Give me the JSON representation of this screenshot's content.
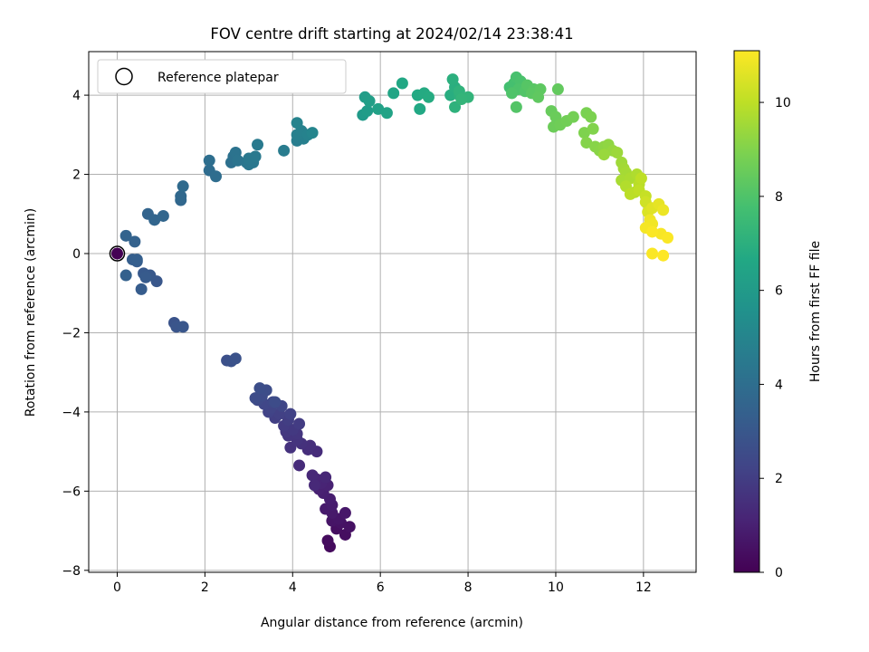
{
  "chart_data": {
    "type": "scatter",
    "title": "FOV centre drift starting at 2024/02/14 23:38:41",
    "xlabel": "Angular distance from reference (arcmin)",
    "ylabel": "Rotation from reference (arcmin)",
    "xlim": [
      -0.65,
      13.2
    ],
    "ylim": [
      -8.05,
      5.1
    ],
    "xticks": [
      0,
      2,
      4,
      6,
      8,
      10,
      12
    ],
    "yticks": [
      -8,
      -6,
      -4,
      -2,
      0,
      2,
      4
    ],
    "grid": true,
    "legend": {
      "position": "top-left",
      "entries": [
        "Reference platepar"
      ]
    },
    "colorbar": {
      "label": "Hours from first FF file",
      "colormap": "viridis",
      "range": [
        0,
        11.1
      ],
      "ticks": [
        0,
        2,
        4,
        6,
        8,
        10
      ]
    },
    "reference_point": {
      "x": 0,
      "y": 0
    },
    "points": [
      [
        4.85,
        -7.4,
        0.3
      ],
      [
        4.8,
        -7.25,
        0.35
      ],
      [
        5.2,
        -7.1,
        0.4
      ],
      [
        5.0,
        -6.95,
        0.45
      ],
      [
        5.3,
        -6.9,
        0.5
      ],
      [
        5.1,
        -6.8,
        0.55
      ],
      [
        4.9,
        -6.75,
        0.6
      ],
      [
        5.05,
        -6.7,
        0.65
      ],
      [
        5.2,
        -6.55,
        0.7
      ],
      [
        4.9,
        -6.55,
        0.75
      ],
      [
        4.75,
        -6.45,
        0.8
      ],
      [
        4.9,
        -6.35,
        0.85
      ],
      [
        4.85,
        -6.2,
        0.9
      ],
      [
        4.7,
        -6.05,
        0.95
      ],
      [
        4.6,
        -5.95,
        1.0
      ],
      [
        4.8,
        -5.85,
        1.05
      ],
      [
        4.65,
        -5.8,
        1.1
      ],
      [
        4.55,
        -5.7,
        1.15
      ],
      [
        4.75,
        -5.65,
        1.2
      ],
      [
        4.45,
        -5.6,
        1.25
      ],
      [
        4.5,
        -5.85,
        1.3
      ],
      [
        4.15,
        -5.35,
        1.35
      ],
      [
        4.55,
        -5.0,
        1.4
      ],
      [
        4.35,
        -4.95,
        1.45
      ],
      [
        4.4,
        -4.85,
        1.5
      ],
      [
        4.2,
        -4.8,
        1.55
      ],
      [
        3.95,
        -4.9,
        1.6
      ],
      [
        4.1,
        -4.7,
        1.65
      ],
      [
        3.9,
        -4.6,
        1.7
      ],
      [
        4.1,
        -4.55,
        1.75
      ],
      [
        3.85,
        -4.5,
        1.8
      ],
      [
        4.0,
        -4.45,
        1.85
      ],
      [
        3.8,
        -4.35,
        1.9
      ],
      [
        4.15,
        -4.3,
        1.95
      ],
      [
        3.9,
        -4.2,
        2.0
      ],
      [
        3.6,
        -4.15,
        2.05
      ],
      [
        3.7,
        -4.05,
        2.1
      ],
      [
        3.95,
        -4.05,
        2.15
      ],
      [
        3.45,
        -4.0,
        2.2
      ],
      [
        3.5,
        -3.9,
        2.25
      ],
      [
        3.75,
        -3.85,
        2.3
      ],
      [
        3.35,
        -3.8,
        2.35
      ],
      [
        3.55,
        -3.75,
        2.4
      ],
      [
        3.2,
        -3.7,
        2.45
      ],
      [
        3.3,
        -3.6,
        2.5
      ],
      [
        3.6,
        -3.75,
        2.55
      ],
      [
        3.15,
        -3.65,
        2.55
      ],
      [
        3.4,
        -3.45,
        2.6
      ],
      [
        3.25,
        -3.4,
        2.65
      ],
      [
        2.5,
        -2.7,
        2.7
      ],
      [
        2.6,
        -2.72,
        2.75
      ],
      [
        2.7,
        -2.65,
        2.8
      ],
      [
        1.3,
        -1.75,
        2.85
      ],
      [
        1.35,
        -1.85,
        2.9
      ],
      [
        1.5,
        -1.85,
        2.95
      ],
      [
        0.9,
        -0.7,
        3.0
      ],
      [
        0.75,
        -0.55,
        3.05
      ],
      [
        0.6,
        -0.5,
        3.1
      ],
      [
        0.65,
        -0.6,
        3.15
      ],
      [
        0.55,
        -0.9,
        3.2
      ],
      [
        0.45,
        -0.2,
        3.25
      ],
      [
        0.35,
        -0.15,
        3.3
      ],
      [
        0.45,
        -0.15,
        3.35
      ],
      [
        0.2,
        -0.55,
        3.4
      ],
      [
        0.4,
        0.3,
        3.45
      ],
      [
        0.2,
        0.45,
        3.5
      ],
      [
        0.7,
        1.0,
        3.55
      ],
      [
        0.85,
        0.85,
        3.6
      ],
      [
        1.05,
        0.95,
        3.65
      ],
      [
        1.45,
        1.35,
        3.7
      ],
      [
        1.45,
        1.45,
        3.75
      ],
      [
        1.5,
        1.7,
        3.8
      ],
      [
        2.1,
        2.1,
        3.9
      ],
      [
        2.25,
        1.95,
        3.95
      ],
      [
        2.1,
        2.35,
        4.0
      ],
      [
        2.6,
        2.3,
        4.1
      ],
      [
        2.65,
        2.45,
        4.15
      ],
      [
        2.7,
        2.55,
        4.2
      ],
      [
        2.75,
        2.35,
        4.25
      ],
      [
        2.95,
        2.3,
        4.3
      ],
      [
        3.0,
        2.25,
        4.35
      ],
      [
        3.1,
        2.3,
        4.4
      ],
      [
        3.0,
        2.4,
        4.45
      ],
      [
        3.15,
        2.45,
        4.5
      ],
      [
        3.2,
        2.75,
        4.55
      ],
      [
        3.8,
        2.6,
        4.6
      ],
      [
        4.1,
        2.85,
        4.65
      ],
      [
        4.25,
        2.9,
        4.75
      ],
      [
        4.1,
        3.0,
        4.8
      ],
      [
        4.2,
        3.1,
        4.85
      ],
      [
        4.35,
        3.0,
        4.9
      ],
      [
        4.1,
        3.3,
        4.95
      ],
      [
        4.45,
        3.05,
        5.0
      ],
      [
        5.6,
        3.5,
        6.0
      ],
      [
        5.7,
        3.6,
        6.1
      ],
      [
        5.65,
        3.95,
        6.15
      ],
      [
        5.75,
        3.85,
        6.2
      ],
      [
        5.95,
        3.65,
        6.3
      ],
      [
        6.15,
        3.55,
        6.4
      ],
      [
        6.3,
        4.05,
        6.5
      ],
      [
        6.5,
        4.3,
        6.6
      ],
      [
        6.9,
        3.65,
        6.65
      ],
      [
        6.85,
        4.0,
        6.7
      ],
      [
        7.0,
        4.05,
        6.75
      ],
      [
        7.1,
        3.95,
        6.8
      ],
      [
        7.6,
        4.0,
        6.9
      ],
      [
        7.7,
        4.2,
        6.95
      ],
      [
        7.65,
        4.4,
        7.0
      ],
      [
        7.8,
        4.0,
        7.05
      ],
      [
        7.7,
        3.7,
        7.1
      ],
      [
        7.8,
        4.1,
        7.15
      ],
      [
        8.0,
        3.95,
        7.2
      ],
      [
        7.85,
        3.9,
        7.25
      ],
      [
        8.95,
        4.2,
        7.75
      ],
      [
        9.05,
        4.3,
        7.8
      ],
      [
        9.1,
        4.45,
        7.85
      ],
      [
        9.2,
        4.35,
        7.9
      ],
      [
        9.15,
        4.15,
        7.95
      ],
      [
        9.0,
        4.05,
        8.0
      ],
      [
        9.3,
        4.1,
        8.05
      ],
      [
        9.1,
        3.7,
        8.1
      ],
      [
        9.35,
        4.25,
        8.15
      ],
      [
        9.5,
        4.15,
        8.2
      ],
      [
        9.45,
        4.05,
        8.25
      ],
      [
        9.65,
        4.15,
        8.3
      ],
      [
        9.6,
        3.95,
        8.35
      ],
      [
        10.05,
        4.15,
        8.4
      ],
      [
        9.9,
        3.6,
        8.5
      ],
      [
        10.0,
        3.45,
        8.55
      ],
      [
        9.95,
        3.2,
        8.6
      ],
      [
        10.1,
        3.25,
        8.65
      ],
      [
        10.25,
        3.35,
        8.7
      ],
      [
        10.4,
        3.45,
        8.75
      ],
      [
        10.7,
        3.55,
        8.85
      ],
      [
        10.8,
        3.45,
        8.9
      ],
      [
        10.65,
        3.05,
        8.95
      ],
      [
        10.85,
        3.15,
        9.0
      ],
      [
        10.7,
        2.8,
        9.05
      ],
      [
        10.9,
        2.7,
        9.1
      ],
      [
        11.0,
        2.6,
        9.15
      ],
      [
        11.1,
        2.7,
        9.2
      ],
      [
        11.2,
        2.75,
        9.25
      ],
      [
        11.3,
        2.6,
        9.35
      ],
      [
        11.1,
        2.5,
        9.4
      ],
      [
        11.4,
        2.55,
        9.45
      ],
      [
        11.5,
        2.3,
        9.5
      ],
      [
        11.55,
        2.15,
        9.55
      ],
      [
        11.6,
        2.05,
        9.6
      ],
      [
        11.5,
        1.85,
        9.65
      ],
      [
        11.7,
        1.9,
        9.7
      ],
      [
        11.85,
        2.0,
        9.75
      ],
      [
        11.6,
        1.7,
        9.8
      ],
      [
        11.8,
        1.55,
        9.85
      ],
      [
        11.9,
        1.75,
        9.9
      ],
      [
        11.7,
        1.5,
        9.95
      ],
      [
        11.95,
        1.9,
        10.0
      ],
      [
        11.9,
        1.6,
        10.05
      ],
      [
        12.05,
        1.45,
        10.15
      ],
      [
        12.05,
        1.3,
        10.3
      ],
      [
        12.1,
        1.05,
        10.5
      ],
      [
        12.2,
        1.15,
        10.6
      ],
      [
        12.35,
        1.25,
        10.7
      ],
      [
        12.45,
        1.1,
        10.8
      ],
      [
        12.15,
        0.85,
        10.85
      ],
      [
        12.2,
        0.75,
        10.9
      ],
      [
        12.05,
        0.65,
        10.95
      ],
      [
        12.4,
        0.5,
        11.0
      ],
      [
        12.55,
        0.4,
        11.05
      ],
      [
        12.2,
        0.0,
        11.05
      ],
      [
        12.45,
        -0.05,
        11.1
      ],
      [
        12.2,
        0.55,
        11.05
      ]
    ]
  }
}
